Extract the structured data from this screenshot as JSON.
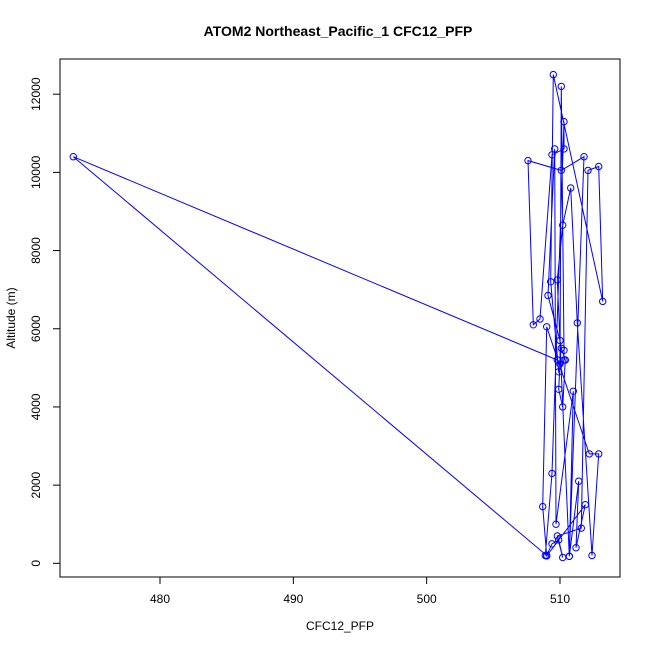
{
  "chart_data": {
    "type": "scatter",
    "title": "ATOM2 Northeast_Pacific_1 CFC12_PFP",
    "xlabel": "CFC12_PFP",
    "ylabel": "Altitude (m)",
    "xlim": [
      472.5,
      514.5
    ],
    "ylim": [
      -350,
      12900
    ],
    "x_ticks": [
      480,
      490,
      500,
      510
    ],
    "y_ticks": [
      0,
      2000,
      4000,
      6000,
      8000,
      10000,
      12000
    ],
    "connect_points": true,
    "series_color": "#0000ff",
    "series": [
      {
        "x": [
          508.9,
          509.4,
          510.3,
          510.3,
          509.4,
          508.5,
          508.0,
          507.6,
          510.1,
          511.8,
          510.7,
          511.4,
          511.2,
          511.9,
          509.0,
          508.7,
          509.0,
          512.2,
          512.9,
          512.4,
          511.3,
          510.8,
          510.2,
          509.8,
          510.7,
          511.0,
          509.7,
          509.6,
          509.1,
          510.0,
          510.1,
          510.4,
          510.2,
          509.9,
          510.0,
          510.1,
          510.3,
          510.3,
          509.9,
          509.3,
          509.5,
          513.2,
          512.9,
          512.1,
          511.6,
          509.8,
          510.2,
          509.9,
          509.4,
          509.0,
          473.5,
          509.8
        ],
        "y": [
          200,
          2300,
          11300,
          10600,
          10450,
          6250,
          6100,
          10300,
          10050,
          10400,
          180,
          2100,
          400,
          1500,
          190,
          1450,
          6050,
          2800,
          2800,
          200,
          6150,
          9600,
          8650,
          7250,
          180,
          4400,
          1000,
          10600,
          6850,
          5700,
          5500,
          5200,
          4000,
          4450,
          5100,
          12200,
          5450,
          5200,
          4900,
          7200,
          12500,
          6700,
          10150,
          10050,
          900,
          700,
          150,
          600,
          500,
          200,
          10400,
          5200
        ]
      }
    ]
  }
}
